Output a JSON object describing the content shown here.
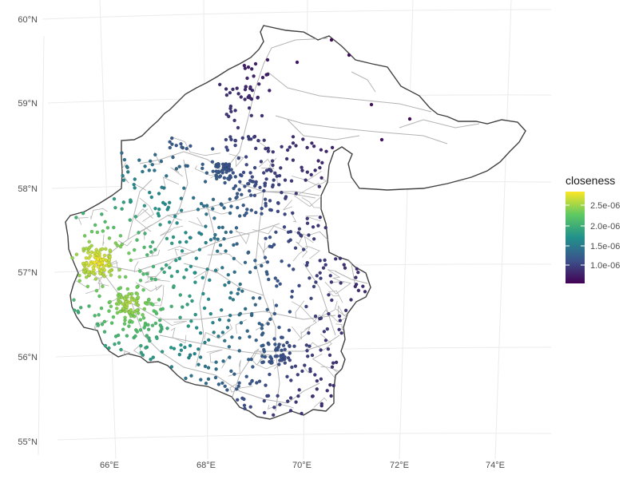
{
  "chart_data": {
    "type": "map",
    "projection": "conic (lon/lat graticule curved)",
    "y_ticks": [
      "55°N",
      "56°N",
      "57°N",
      "58°N",
      "59°N",
      "60°N"
    ],
    "x_ticks": [
      "66°E",
      "68°E",
      "70°E",
      "72°E",
      "74°E"
    ],
    "legend": {
      "title": "closeness",
      "labels": [
        "2.5e-06",
        "2.0e-06",
        "1.5e-06",
        "1.0e-06"
      ],
      "palette": "viridis",
      "colors": [
        "#440154",
        "#3b528b",
        "#21918c",
        "#5ec962",
        "#fde725"
      ],
      "placement": "right"
    },
    "colors": {
      "region_outline": "#404040",
      "road_lines": "#b3b3b3",
      "graticule": "#ebebeb"
    },
    "grid": true,
    "layers": [
      "region boundary polygon",
      "road network lines",
      "settlement points colored by closeness"
    ]
  }
}
